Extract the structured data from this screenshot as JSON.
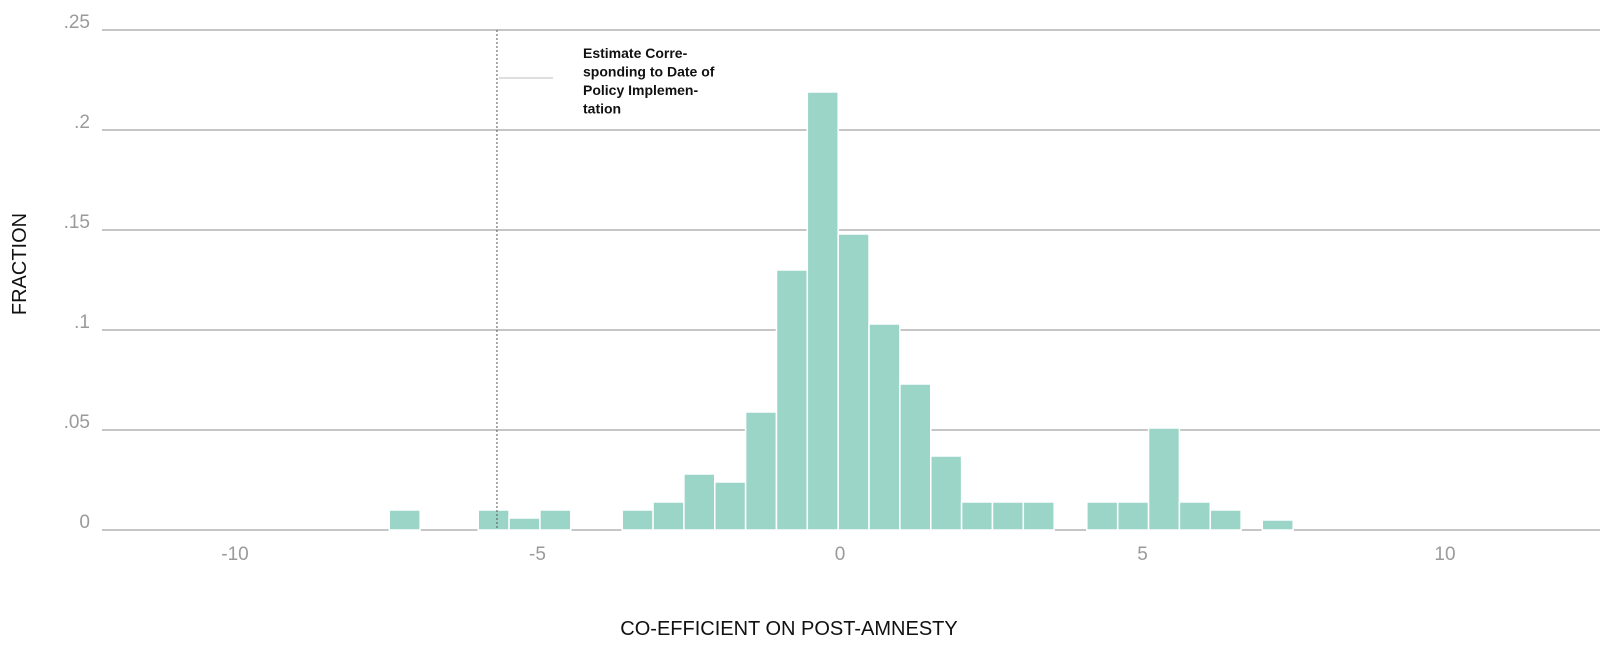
{
  "chart_data": {
    "type": "bar",
    "xlabel": "CO-EFFICIENT ON POST-AMNESTY",
    "ylabel": "FRACTION",
    "xlim": [
      -12.5,
      12.5
    ],
    "ylim": [
      0,
      0.25
    ],
    "x_ticks": [
      {
        "value": -10,
        "label": "-10"
      },
      {
        "value": -5,
        "label": "-5"
      },
      {
        "value": 0,
        "label": "0"
      },
      {
        "value": 5,
        "label": "5"
      },
      {
        "value": 10,
        "label": "10"
      }
    ],
    "y_ticks": [
      {
        "value": 0,
        "label": "0"
      },
      {
        "value": 0.05,
        "label": ".05"
      },
      {
        "value": 0.1,
        "label": ".1"
      },
      {
        "value": 0.15,
        "label": ".15"
      },
      {
        "value": 0.2,
        "label": ".2"
      },
      {
        "value": 0.25,
        "label": ".25"
      }
    ],
    "grid": "horizontal",
    "bin_width": 0.51,
    "bars": [
      {
        "x_start": -7.45,
        "value": 0.01
      },
      {
        "x_start": -5.98,
        "value": 0.01
      },
      {
        "x_start": -5.47,
        "value": 0.006
      },
      {
        "x_start": -4.96,
        "value": 0.01
      },
      {
        "x_start": -3.6,
        "value": 0.01
      },
      {
        "x_start": -3.09,
        "value": 0.014
      },
      {
        "x_start": -2.58,
        "value": 0.028
      },
      {
        "x_start": -2.07,
        "value": 0.024
      },
      {
        "x_start": -1.56,
        "value": 0.059
      },
      {
        "x_start": -1.05,
        "value": 0.13
      },
      {
        "x_start": -0.54,
        "value": 0.219
      },
      {
        "x_start": -0.03,
        "value": 0.148
      },
      {
        "x_start": 0.48,
        "value": 0.103
      },
      {
        "x_start": 0.99,
        "value": 0.073
      },
      {
        "x_start": 1.5,
        "value": 0.037
      },
      {
        "x_start": 2.01,
        "value": 0.014
      },
      {
        "x_start": 2.52,
        "value": 0.014
      },
      {
        "x_start": 3.03,
        "value": 0.014
      },
      {
        "x_start": 4.08,
        "value": 0.014
      },
      {
        "x_start": 4.59,
        "value": 0.014
      },
      {
        "x_start": 5.1,
        "value": 0.051
      },
      {
        "x_start": 5.61,
        "value": 0.014
      },
      {
        "x_start": 6.12,
        "value": 0.01
      },
      {
        "x_start": 6.98,
        "value": 0.005
      }
    ],
    "reference_line": {
      "x": -5.67,
      "style": "dotted",
      "label_lines": [
        "Estimate Corre-",
        "sponding to Date of",
        "Policy Implemen-",
        "tation"
      ]
    }
  }
}
